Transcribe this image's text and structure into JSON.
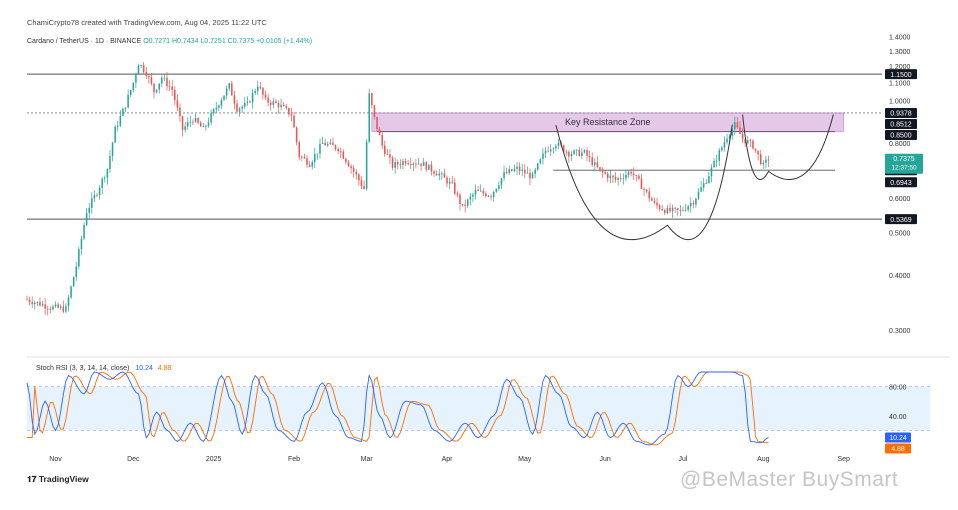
{
  "header": {
    "attribution": "ChamiCrypto78 created with TradingView.com, Aug 04, 2025 11:22 UTC",
    "symbol": "Cardano / TetherUS · 1D · BINANCE",
    "ohlc": "O0.7271  H0.7434  L0.7251  C0.7375  +0.0105 (+1.44%)"
  },
  "stoch": {
    "label": "Stoch RSI (3, 3, 14, 14, close)",
    "k_value": "10.24",
    "d_value": "4.88"
  },
  "footer": {
    "brand": "TradingView",
    "watermark": "@BeMaster BuySmart"
  },
  "colors": {
    "up": "#26a69a",
    "down": "#ef5350",
    "zone": "#e1bee7",
    "zone_border": "#c77dd8",
    "k_line": "#2962ff",
    "d_line": "#ff6d00",
    "rsi_band": "#e3f2fd"
  },
  "chart_data": [
    {
      "type": "candlestick",
      "title": "Cardano / TetherUS · 1D · BINANCE",
      "y_scale": "log",
      "ylim": [
        0.27,
        1.45
      ],
      "y_ticks": [
        "1.4000",
        "1.3000",
        "1.2000",
        "1.1000",
        "1.0000",
        "0.8000",
        "0.7000",
        "0.6000",
        "0.5000",
        "0.4000",
        "0.3000"
      ],
      "y_tick_values": [
        1.4,
        1.3,
        1.2,
        1.1,
        1.0,
        0.8,
        0.7,
        0.6,
        0.5,
        0.4,
        0.3
      ],
      "x_ticks": [
        "Nov",
        "Dec",
        "2025",
        "Feb",
        "Mar",
        "Apr",
        "May",
        "Jun",
        "Jul",
        "Aug",
        "Sep"
      ],
      "x_range": [
        "2024-10-21",
        "2025-09-15"
      ],
      "x_tick_dates": [
        "2024-11-01",
        "2024-12-01",
        "2025-01-01",
        "2025-02-01",
        "2025-03-01",
        "2025-04-01",
        "2025-05-01",
        "2025-06-01",
        "2025-07-01",
        "2025-08-01",
        "2025-09-01"
      ],
      "price_key_points": [
        {
          "date": "2024-10-21",
          "price": 0.352
        },
        {
          "date": "2024-10-30",
          "price": 0.338
        },
        {
          "date": "2024-11-05",
          "price": 0.335
        },
        {
          "date": "2024-11-09",
          "price": 0.42
        },
        {
          "date": "2024-11-13",
          "price": 0.56
        },
        {
          "date": "2024-11-17",
          "price": 0.62
        },
        {
          "date": "2024-11-21",
          "price": 0.7
        },
        {
          "date": "2024-11-24",
          "price": 0.86
        },
        {
          "date": "2024-11-28",
          "price": 0.98
        },
        {
          "date": "2024-12-01",
          "price": 1.1
        },
        {
          "date": "2024-12-03",
          "price": 1.22
        },
        {
          "date": "2024-12-06",
          "price": 1.16
        },
        {
          "date": "2024-12-09",
          "price": 1.05
        },
        {
          "date": "2024-12-12",
          "price": 1.13
        },
        {
          "date": "2024-12-16",
          "price": 1.06
        },
        {
          "date": "2024-12-20",
          "price": 0.86
        },
        {
          "date": "2024-12-24",
          "price": 0.91
        },
        {
          "date": "2024-12-28",
          "price": 0.86
        },
        {
          "date": "2025-01-03",
          "price": 0.99
        },
        {
          "date": "2025-01-07",
          "price": 1.08
        },
        {
          "date": "2025-01-10",
          "price": 0.96
        },
        {
          "date": "2025-01-14",
          "price": 0.98
        },
        {
          "date": "2025-01-18",
          "price": 1.09
        },
        {
          "date": "2025-01-21",
          "price": 1.0
        },
        {
          "date": "2025-01-26",
          "price": 0.98
        },
        {
          "date": "2025-01-31",
          "price": 0.93
        },
        {
          "date": "2025-02-03",
          "price": 0.75
        },
        {
          "date": "2025-02-07",
          "price": 0.72
        },
        {
          "date": "2025-02-12",
          "price": 0.8
        },
        {
          "date": "2025-02-18",
          "price": 0.78
        },
        {
          "date": "2025-02-24",
          "price": 0.69
        },
        {
          "date": "2025-02-28",
          "price": 0.63
        },
        {
          "date": "2025-03-02",
          "price": 1.03
        },
        {
          "date": "2025-03-04",
          "price": 0.91
        },
        {
          "date": "2025-03-07",
          "price": 0.79
        },
        {
          "date": "2025-03-11",
          "price": 0.71
        },
        {
          "date": "2025-03-16",
          "price": 0.73
        },
        {
          "date": "2025-03-22",
          "price": 0.72
        },
        {
          "date": "2025-03-29",
          "price": 0.68
        },
        {
          "date": "2025-04-03",
          "price": 0.64
        },
        {
          "date": "2025-04-07",
          "price": 0.57
        },
        {
          "date": "2025-04-12",
          "price": 0.62
        },
        {
          "date": "2025-04-18",
          "price": 0.61
        },
        {
          "date": "2025-04-23",
          "price": 0.68
        },
        {
          "date": "2025-04-28",
          "price": 0.7
        },
        {
          "date": "2025-05-04",
          "price": 0.67
        },
        {
          "date": "2025-05-09",
          "price": 0.77
        },
        {
          "date": "2025-05-13",
          "price": 0.8
        },
        {
          "date": "2025-05-18",
          "price": 0.76
        },
        {
          "date": "2025-05-24",
          "price": 0.76
        },
        {
          "date": "2025-05-30",
          "price": 0.69
        },
        {
          "date": "2025-06-05",
          "price": 0.66
        },
        {
          "date": "2025-06-11",
          "price": 0.69
        },
        {
          "date": "2025-06-15",
          "price": 0.64
        },
        {
          "date": "2025-06-20",
          "price": 0.58
        },
        {
          "date": "2025-06-25",
          "price": 0.56
        },
        {
          "date": "2025-06-30",
          "price": 0.56
        },
        {
          "date": "2025-07-05",
          "price": 0.59
        },
        {
          "date": "2025-07-10",
          "price": 0.66
        },
        {
          "date": "2025-07-14",
          "price": 0.74
        },
        {
          "date": "2025-07-18",
          "price": 0.83
        },
        {
          "date": "2025-07-21",
          "price": 0.88
        },
        {
          "date": "2025-07-24",
          "price": 0.82
        },
        {
          "date": "2025-07-28",
          "price": 0.79
        },
        {
          "date": "2025-08-01",
          "price": 0.71
        },
        {
          "date": "2025-08-03",
          "price": 0.7375
        }
      ],
      "horizontal_levels": [
        {
          "value": 1.15,
          "label": "1.1500",
          "style": "solid"
        },
        {
          "value": 0.9378,
          "label": "0.9378",
          "style": "dashed"
        },
        {
          "value": 0.8512,
          "label": "0.8512",
          "style": "none"
        },
        {
          "value": 0.85,
          "label": "0.8500",
          "style": "solid-partial"
        },
        {
          "value": 0.6943,
          "label": "0.6943",
          "style": "solid-partial"
        },
        {
          "value": 0.5369,
          "label": "0.5369",
          "style": "solid"
        }
      ],
      "current_price": {
        "value": 0.7375,
        "label": "0.7375",
        "countdown": "12:37:50"
      },
      "annotations": [
        {
          "type": "zone",
          "label": "Key Resistance Zone",
          "from_date": "2025-03-03",
          "to_date": "2025-09-01",
          "low": 0.8512,
          "high": 0.9378
        },
        {
          "type": "cup_curve",
          "from_date": "2025-05-13",
          "bottom_date": "2025-06-25",
          "to_date": "2025-07-20",
          "bottom_price": 0.52,
          "edge_price": 0.88
        },
        {
          "type": "handle_curve",
          "from_date": "2025-07-24",
          "bottom_date": "2025-08-03",
          "to_date": "2025-08-28",
          "bottom_price": 0.69,
          "edge_price": 0.93
        }
      ]
    },
    {
      "type": "line",
      "title": "Stoch RSI (3, 3, 14, 14, close)",
      "ylim": [
        0,
        100
      ],
      "y_ticks": [
        "80.00",
        "40.00"
      ],
      "y_tick_values": [
        80,
        40
      ],
      "band": [
        20,
        80
      ],
      "series": [
        {
          "name": "K",
          "color": "#2962ff",
          "last": "10.24"
        },
        {
          "name": "D",
          "color": "#ff6d00",
          "last": "4.88"
        }
      ],
      "k_key_points": [
        {
          "date": "2024-10-21",
          "value": 85
        },
        {
          "date": "2024-10-24",
          "value": 15
        },
        {
          "date": "2024-10-28",
          "value": 60
        },
        {
          "date": "2024-11-01",
          "value": 20
        },
        {
          "date": "2024-11-06",
          "value": 95
        },
        {
          "date": "2024-11-12",
          "value": 70
        },
        {
          "date": "2024-11-16",
          "value": 100
        },
        {
          "date": "2024-11-22",
          "value": 90
        },
        {
          "date": "2024-11-27",
          "value": 100
        },
        {
          "date": "2024-12-03",
          "value": 70
        },
        {
          "date": "2024-12-06",
          "value": 10
        },
        {
          "date": "2024-12-10",
          "value": 45
        },
        {
          "date": "2024-12-14",
          "value": 20
        },
        {
          "date": "2024-12-18",
          "value": 5
        },
        {
          "date": "2024-12-23",
          "value": 30
        },
        {
          "date": "2024-12-28",
          "value": 5
        },
        {
          "date": "2025-01-04",
          "value": 95
        },
        {
          "date": "2025-01-08",
          "value": 60
        },
        {
          "date": "2025-01-12",
          "value": 15
        },
        {
          "date": "2025-01-17",
          "value": 95
        },
        {
          "date": "2025-01-21",
          "value": 70
        },
        {
          "date": "2025-01-26",
          "value": 20
        },
        {
          "date": "2025-02-01",
          "value": 5
        },
        {
          "date": "2025-02-06",
          "value": 45
        },
        {
          "date": "2025-02-12",
          "value": 85
        },
        {
          "date": "2025-02-17",
          "value": 40
        },
        {
          "date": "2025-02-22",
          "value": 10
        },
        {
          "date": "2025-02-27",
          "value": 5
        },
        {
          "date": "2025-03-02",
          "value": 95
        },
        {
          "date": "2025-03-06",
          "value": 40
        },
        {
          "date": "2025-03-10",
          "value": 10
        },
        {
          "date": "2025-03-16",
          "value": 60
        },
        {
          "date": "2025-03-22",
          "value": 55
        },
        {
          "date": "2025-03-27",
          "value": 20
        },
        {
          "date": "2025-04-02",
          "value": 5
        },
        {
          "date": "2025-04-08",
          "value": 30
        },
        {
          "date": "2025-04-13",
          "value": 10
        },
        {
          "date": "2025-04-19",
          "value": 40
        },
        {
          "date": "2025-04-24",
          "value": 90
        },
        {
          "date": "2025-04-29",
          "value": 65
        },
        {
          "date": "2025-05-04",
          "value": 15
        },
        {
          "date": "2025-05-09",
          "value": 95
        },
        {
          "date": "2025-05-14",
          "value": 70
        },
        {
          "date": "2025-05-19",
          "value": 25
        },
        {
          "date": "2025-05-24",
          "value": 10
        },
        {
          "date": "2025-05-29",
          "value": 45
        },
        {
          "date": "2025-06-03",
          "value": 10
        },
        {
          "date": "2025-06-08",
          "value": 30
        },
        {
          "date": "2025-06-13",
          "value": 5
        },
        {
          "date": "2025-06-18",
          "value": 0
        },
        {
          "date": "2025-06-24",
          "value": 15
        },
        {
          "date": "2025-06-29",
          "value": 95
        },
        {
          "date": "2025-07-03",
          "value": 80
        },
        {
          "date": "2025-07-08",
          "value": 100
        },
        {
          "date": "2025-07-14",
          "value": 100
        },
        {
          "date": "2025-07-20",
          "value": 100
        },
        {
          "date": "2025-07-24",
          "value": 95
        },
        {
          "date": "2025-07-27",
          "value": 5
        },
        {
          "date": "2025-07-31",
          "value": 3
        },
        {
          "date": "2025-08-03",
          "value": 10.24
        }
      ]
    }
  ]
}
